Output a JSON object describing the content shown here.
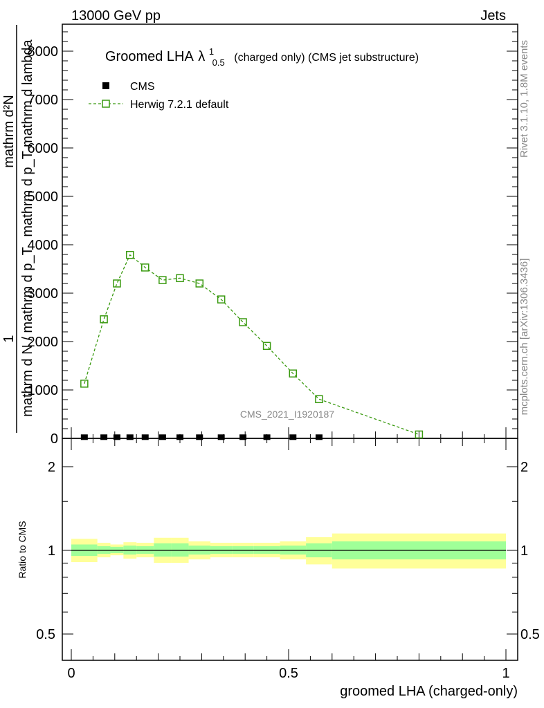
{
  "header": {
    "left": "13000 GeV pp",
    "right": "Jets"
  },
  "side_labels": {
    "rivet": "Rivet 3.1.10,  1.8M events",
    "mcplots": "mcplots.cern.ch [arXiv:1306.3436]"
  },
  "watermark": "CMS_2021_I1920187",
  "colors": {
    "herwig": "#3a9a10",
    "data": "#000000",
    "band_inner": "#a0ff98",
    "band_outer": "#ffff99"
  },
  "chart_data": [
    {
      "type": "line",
      "title_main": "Groomed LHA",
      "title_symbol": "λ",
      "title_sup": "1",
      "title_sub": "0.5",
      "title_rest": "(charged only) (CMS jet substructure)",
      "ylabel_parts": {
        "num1": "mathrm d²N",
        "den1": "mathrm d p_T mathrm d lambda",
        "one": "1",
        "den2": "mathrm d N / mathrm d p_T"
      },
      "xlim": [
        0,
        1
      ],
      "ylim": [
        0,
        8500
      ],
      "yticks": [
        "0",
        "1000",
        "2000",
        "3000",
        "4000",
        "5000",
        "6000",
        "7000",
        "8000"
      ],
      "legend": {
        "placement": "top-left",
        "entries": [
          "CMS",
          "Herwig 7.2.1 default"
        ]
      },
      "bin_edges": [
        0,
        0.06,
        0.09,
        0.12,
        0.15,
        0.19,
        0.23,
        0.27,
        0.32,
        0.37,
        0.42,
        0.48,
        0.54,
        0.6,
        1.0
      ],
      "series": [
        {
          "name": "CMS",
          "x": [
            0.03,
            0.075,
            0.105,
            0.135,
            0.17,
            0.21,
            0.25,
            0.295,
            0.345,
            0.395,
            0.45,
            0.51,
            0.57
          ],
          "values": [
            10,
            10,
            10,
            10,
            10,
            10,
            10,
            10,
            10,
            10,
            10,
            10,
            10
          ]
        },
        {
          "name": "Herwig 7.2.1 default",
          "x": [
            0.03,
            0.075,
            0.105,
            0.135,
            0.17,
            0.21,
            0.25,
            0.295,
            0.345,
            0.395,
            0.45,
            0.51,
            0.57,
            0.8
          ],
          "values": [
            1130,
            2460,
            3200,
            3790,
            3530,
            3270,
            3310,
            3200,
            2870,
            2400,
            1910,
            1340,
            810,
            80
          ]
        }
      ]
    },
    {
      "type": "area",
      "ylabel": "Ratio to CMS",
      "xlabel": "groomed LHA (charged-only)",
      "xticks": [
        "0",
        "0.5",
        "1"
      ],
      "yticks": [
        "0.5",
        "1",
        "2"
      ],
      "ylim": [
        0.4,
        2.5
      ],
      "yscale": "log",
      "bands": {
        "outer_up": [
          1.1,
          1.065,
          1.05,
          1.07,
          1.065,
          1.11,
          1.11,
          1.077,
          1.065,
          1.065,
          1.065,
          1.077,
          1.115,
          1.15
        ],
        "outer_down": [
          0.907,
          0.944,
          0.96,
          0.934,
          0.944,
          0.902,
          0.902,
          0.928,
          0.944,
          0.944,
          0.944,
          0.928,
          0.89,
          0.86
        ],
        "inner_up": [
          1.05,
          1.035,
          1.03,
          1.04,
          1.035,
          1.06,
          1.06,
          1.04,
          1.035,
          1.035,
          1.035,
          1.04,
          1.06,
          1.077
        ],
        "inner_down": [
          0.955,
          0.972,
          0.977,
          0.966,
          0.972,
          0.95,
          0.95,
          0.966,
          0.972,
          0.972,
          0.972,
          0.966,
          0.944,
          0.928
        ]
      }
    }
  ]
}
